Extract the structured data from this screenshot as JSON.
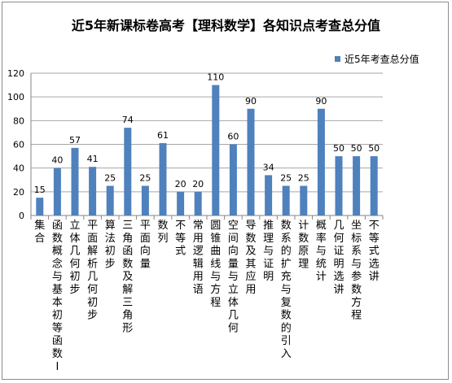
{
  "chart_data": {
    "type": "bar",
    "title": "近5年新课标卷高考【理科数学】各知识点考查总分值",
    "xlabel": "",
    "ylabel": "",
    "ylim": [
      0,
      120
    ],
    "yticks": [
      0,
      20,
      40,
      60,
      80,
      100,
      120
    ],
    "grid": true,
    "legend_position": "top-right",
    "bar_color": "#4f81bd",
    "categories": [
      "集合",
      "函数概念与基本初等函数Ⅰ",
      "立体几何初步",
      "平面解析几何初步",
      "算法初步",
      "三角函数及解三角形",
      "平面向量",
      "数列",
      "不等式",
      "常用逻辑用语",
      "圆锥曲线与方程",
      "空间向量与立体几何",
      "导数及其应用",
      "推理与证明",
      "数系的扩充与复数的引入",
      "计数原理",
      "概率与统计",
      "几何证明选讲",
      "坐标系与参数方程",
      "不等式选讲"
    ],
    "series": [
      {
        "name": "近5年考查总分值",
        "values": [
          15,
          40,
          57,
          41,
          25,
          74,
          25,
          61,
          20,
          20,
          110,
          60,
          90,
          34,
          25,
          25,
          90,
          50,
          50,
          50
        ]
      }
    ]
  }
}
